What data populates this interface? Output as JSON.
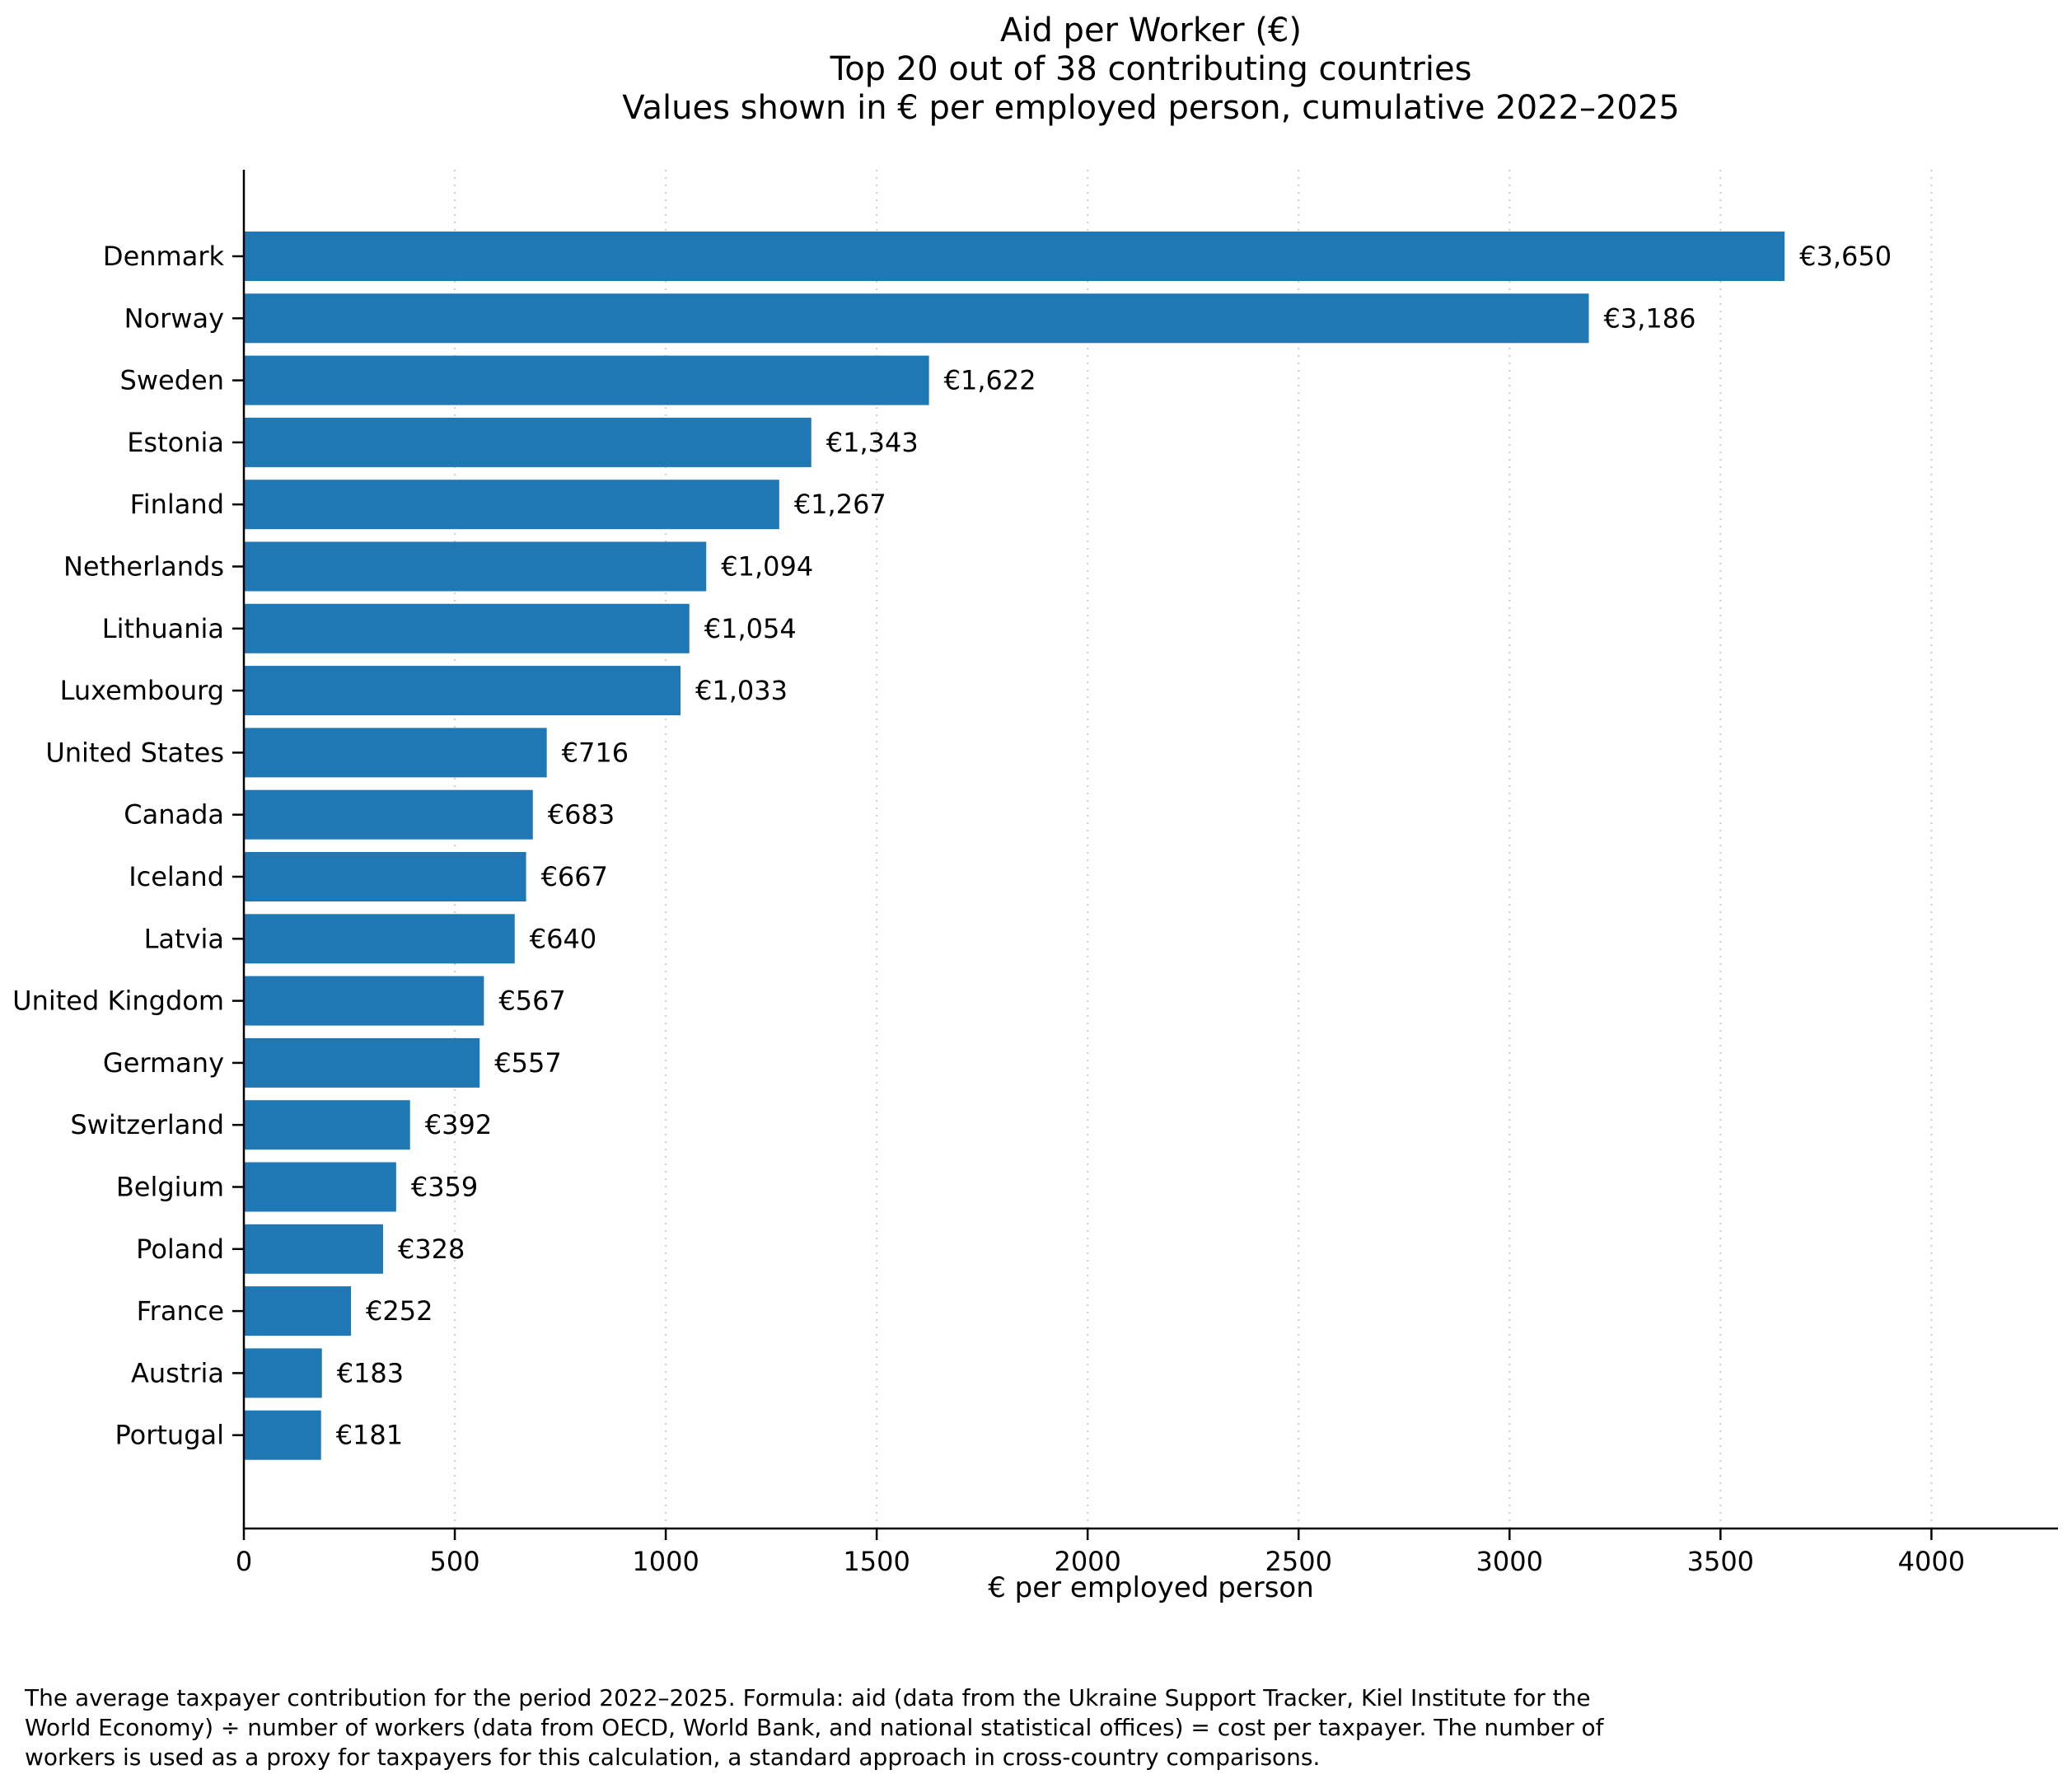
{
  "header": {
    "lines": [
      "Aid per Worker (€)",
      "Top 20 out of 38 contributing countries",
      "Values shown in € per employed person, cumulative 2022–2025"
    ]
  },
  "chart_data": {
    "type": "bar",
    "orientation": "horizontal",
    "title": "Aid per Worker (€)\nTop 20 out of 38 contributing countries\nValues shown in € per employed person, cumulative 2022–2025",
    "xlabel": "€ per employed person",
    "ylabel": "",
    "categories": [
      "Denmark",
      "Norway",
      "Sweden",
      "Estonia",
      "Finland",
      "Netherlands",
      "Lithuania",
      "Luxembourg",
      "United States",
      "Canada",
      "Iceland",
      "Latvia",
      "United Kingdom",
      "Germany",
      "Switzerland",
      "Belgium",
      "Poland",
      "France",
      "Austria",
      "Portugal"
    ],
    "values": [
      3650,
      3186,
      1622,
      1343,
      1267,
      1094,
      1054,
      1033,
      716,
      683,
      667,
      640,
      567,
      557,
      392,
      359,
      328,
      252,
      183,
      181
    ],
    "value_labels": [
      "€3,650",
      "€3,186",
      "€1,622",
      "€1,343",
      "€1,267",
      "€1,094",
      "€1,054",
      "€1,033",
      "€716",
      "€683",
      "€667",
      "€640",
      "€567",
      "€557",
      "€392",
      "€359",
      "€328",
      "€252",
      "€183",
      "€181"
    ],
    "x_ticks": [
      0,
      500,
      1000,
      1500,
      2000,
      2500,
      3000,
      3500,
      4000
    ],
    "xlim": [
      0,
      4300
    ],
    "grid": "vertical dotted",
    "legend": "none",
    "sorted": "descending",
    "bar_color": "#1f77b4"
  },
  "footnote": {
    "text": "The average taxpayer contribution for the period 2022–2025. Formula: aid (data from the Ukraine Support Tracker, Kiel Institute for the\nWorld Economy) ÷ number of workers (data from OECD, World Bank, and national statistical offices) = cost per taxpayer. The number of\nworkers is used as a proxy for taxpayers for this calculation, a standard approach in cross-country comparisons."
  },
  "colors": {
    "bar": "#1f77b4",
    "grid": "#cccccc",
    "axis": "#000000",
    "text": "#000000",
    "background": "#ffffff"
  }
}
